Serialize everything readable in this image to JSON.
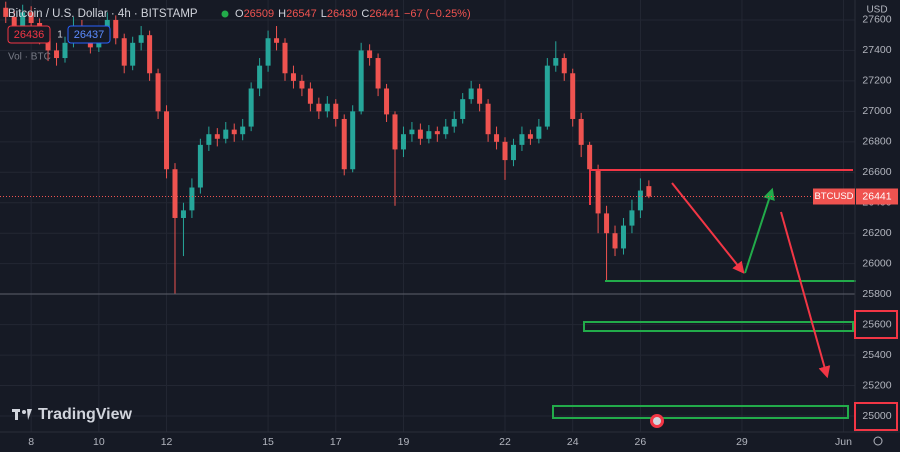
{
  "chart_data": {
    "type": "candlestick",
    "title": "Bitcoin / U.S. Dollar · 4h · BITSTAMP",
    "ohlc_letters": [
      "O",
      "H",
      "L",
      "C"
    ],
    "change": "−67 (−0.25%)",
    "bid": "26436",
    "spread": "1",
    "ask": "26437",
    "volume_label": "Vol · BTC",
    "watermark": "TradingView",
    "y_axis_label": "USD",
    "symbol_label": "BTCUSD",
    "up_color": "#26a69a",
    "down_color": "#ef5350",
    "x": [
      7.25,
      7.5,
      7.75,
      8,
      8.25,
      8.5,
      8.75,
      9,
      9.25,
      9.5,
      9.75,
      10,
      10.25,
      10.5,
      10.75,
      11,
      11.25,
      11.5,
      11.75,
      12,
      12.25,
      12.5,
      12.75,
      13,
      13.25,
      13.5,
      13.75,
      14,
      14.25,
      14.5,
      14.75,
      15,
      15.25,
      15.5,
      15.75,
      16,
      16.25,
      16.5,
      16.75,
      17,
      17.25,
      17.5,
      17.75,
      18,
      18.25,
      18.5,
      18.75,
      19,
      19.25,
      19.5,
      19.75,
      20,
      20.25,
      20.5,
      20.75,
      21,
      21.25,
      21.5,
      21.75,
      22,
      22.25,
      22.5,
      22.75,
      23,
      23.25,
      23.5,
      23.75,
      24,
      24.25,
      24.5,
      24.75,
      25,
      25.25,
      25.5,
      25.75,
      26,
      26.25
    ],
    "open": [
      27680,
      27620,
      27560,
      27650,
      27580,
      27480,
      27400,
      27350,
      27450,
      27560,
      27500,
      27420,
      27520,
      27600,
      27480,
      27300,
      27450,
      27500,
      27250,
      27000,
      26620,
      26300,
      26350,
      26500,
      26780,
      26850,
      26820,
      26880,
      26850,
      26900,
      27150,
      27300,
      27480,
      27450,
      27250,
      27200,
      27150,
      27050,
      27000,
      27050,
      26950,
      26620,
      27000,
      27400,
      27350,
      27150,
      26980,
      26750,
      26850,
      26880,
      26820,
      26870,
      26850,
      26900,
      26950,
      27080,
      27150,
      27050,
      26850,
      26800,
      26680,
      26780,
      26850,
      26820,
      26900,
      27300,
      27350,
      27250,
      26950,
      26780,
      26620,
      26330,
      26200,
      26100,
      26250,
      26350,
      26509
    ],
    "high": [
      27720,
      27660,
      27700,
      27690,
      27610,
      27520,
      27450,
      27490,
      27620,
      27600,
      27540,
      27560,
      27650,
      27630,
      27510,
      27490,
      27560,
      27530,
      27280,
      27040,
      26660,
      26400,
      26560,
      26820,
      26900,
      26890,
      26930,
      26920,
      26950,
      27190,
      27350,
      27530,
      27560,
      27480,
      27300,
      27240,
      27190,
      27090,
      27100,
      27080,
      26980,
      27040,
      27450,
      27440,
      27380,
      27180,
      27000,
      26900,
      26930,
      26920,
      26910,
      26900,
      26950,
      27000,
      27120,
      27200,
      27180,
      27080,
      26900,
      26830,
      26820,
      26900,
      26880,
      26950,
      27350,
      27460,
      27380,
      27280,
      26990,
      26800,
      26650,
      26380,
      26250,
      26300,
      26420,
      26560,
      26547
    ],
    "low": [
      27580,
      27510,
      27520,
      27540,
      27440,
      27330,
      27300,
      27320,
      27420,
      27460,
      27380,
      27390,
      27480,
      27440,
      27250,
      27270,
      27400,
      27200,
      26950,
      26560,
      25800,
      26050,
      26300,
      26460,
      26740,
      26770,
      26790,
      26800,
      26810,
      26870,
      27100,
      27260,
      27400,
      27200,
      27150,
      27100,
      27000,
      26950,
      26960,
      26900,
      26580,
      26600,
      26980,
      27300,
      27100,
      26930,
      26380,
      26700,
      26800,
      26780,
      26790,
      26800,
      26820,
      26860,
      26920,
      27050,
      27000,
      26800,
      26750,
      26550,
      26640,
      26740,
      26780,
      26790,
      26880,
      27260,
      27200,
      26900,
      26700,
      26550,
      26200,
      25890,
      26050,
      26060,
      26200,
      26300,
      26430
    ],
    "close": [
      27620,
      27560,
      27650,
      27580,
      27480,
      27400,
      27350,
      27450,
      27560,
      27500,
      27420,
      27520,
      27600,
      27480,
      27300,
      27450,
      27500,
      27250,
      27000,
      26620,
      26300,
      26350,
      26500,
      26780,
      26850,
      26820,
      26880,
      26850,
      26900,
      27150,
      27300,
      27480,
      27450,
      27250,
      27200,
      27150,
      27050,
      27000,
      27050,
      26950,
      26620,
      27000,
      27400,
      27350,
      27150,
      26980,
      26750,
      26850,
      26880,
      26820,
      26870,
      26850,
      26900,
      26950,
      27080,
      27150,
      27050,
      26850,
      26800,
      26680,
      26780,
      26850,
      26820,
      26900,
      27300,
      27350,
      27250,
      26950,
      26780,
      26620,
      26330,
      26200,
      26100,
      26250,
      26350,
      26480,
      26441
    ],
    "xlim": [
      7.08,
      32.34
    ],
    "xticks": [
      8,
      10,
      12,
      15,
      17,
      19,
      22,
      24,
      26,
      29,
      {
        "value": 32,
        "label": "Jun"
      }
    ],
    "ylim": [
      24895,
      27731
    ],
    "yticks": [
      27600,
      27400,
      27200,
      27000,
      26800,
      26600,
      26400,
      26200,
      26000,
      25800,
      25600,
      25400,
      25200,
      25000
    ],
    "grid": true
  }
}
